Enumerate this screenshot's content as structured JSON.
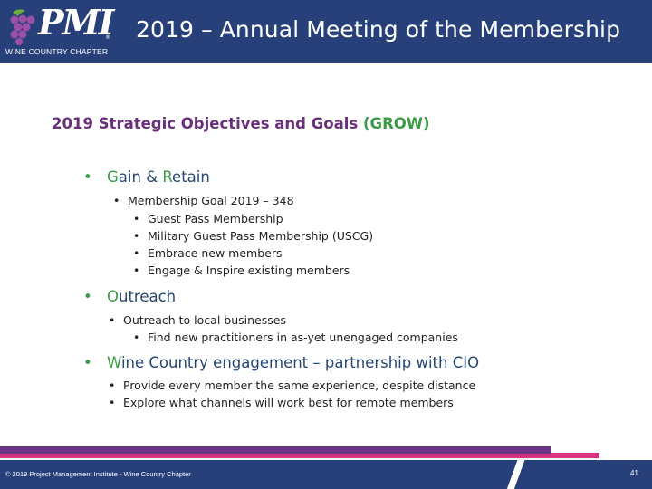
{
  "header": {
    "logo_text": "PMI",
    "logo_reg": "®",
    "chapter": "WINE COUNTRY CHAPTER",
    "title": "2019 – Annual Meeting of the Membership"
  },
  "slide": {
    "title_main": "2019 Strategic Objectives and Goals ",
    "title_grow": "(GROW)",
    "sections": [
      {
        "heading_g": "G",
        "heading_ain": "ain & ",
        "heading_r": "R",
        "heading_rest": "etain",
        "sub": [
          {
            "text": "Membership Goal 2019 – 348",
            "items": [
              "Guest Pass Membership",
              "Military Guest Pass Membership (USCG)",
              "Embrace new members",
              "Engage & Inspire existing members"
            ]
          }
        ]
      },
      {
        "heading_o": "O",
        "heading_rest": "utreach",
        "sub": [
          {
            "text": "Outreach to local businesses",
            "items": [
              "Find new practitioners in as-yet unengaged companies"
            ]
          }
        ]
      },
      {
        "heading_w": "W",
        "heading_rest": "ine Country engagement – partnership with CIO",
        "sub": [
          {
            "text": "Provide every member the same experience, despite distance"
          },
          {
            "text": "Explore what channels will work best for remote members"
          }
        ]
      }
    ],
    "bullet": "•"
  },
  "footer": {
    "copyright": "© 2019 Project Management Institute - Wine Country Chapter",
    "page_number": "41"
  },
  "colors": {
    "navy": "#27407a",
    "purple": "#6a2f7d",
    "green": "#3a9a45",
    "pink": "#d8327e"
  }
}
